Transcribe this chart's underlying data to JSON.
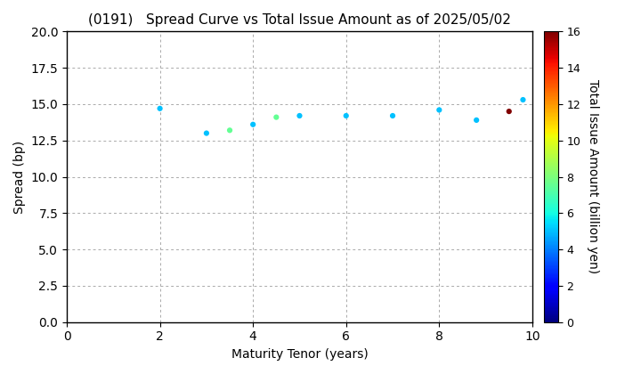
{
  "title": "(0191)   Spread Curve vs Total Issue Amount as of 2025/05/02",
  "xlabel": "Maturity Tenor (years)",
  "ylabel": "Spread (bp)",
  "colorbar_label": "Total Issue Amount (billion yen)",
  "xlim": [
    0,
    10
  ],
  "ylim": [
    0.0,
    20.0
  ],
  "yticks": [
    0.0,
    2.5,
    5.0,
    7.5,
    10.0,
    12.5,
    15.0,
    17.5,
    20.0
  ],
  "xticks": [
    0,
    2,
    4,
    6,
    8,
    10
  ],
  "colorbar_min": 0,
  "colorbar_max": 16,
  "colorbar_ticks": [
    0,
    2,
    4,
    6,
    8,
    10,
    12,
    14,
    16
  ],
  "scatter_x": [
    2.0,
    3.0,
    3.5,
    4.0,
    4.5,
    5.0,
    6.0,
    7.0,
    8.0,
    8.8,
    9.5,
    9.8
  ],
  "scatter_y": [
    14.7,
    13.0,
    13.2,
    13.6,
    14.1,
    14.2,
    14.2,
    14.2,
    14.6,
    13.9,
    14.5,
    15.3
  ],
  "scatter_c": [
    5.0,
    5.0,
    7.5,
    5.0,
    7.5,
    5.0,
    5.0,
    5.0,
    5.0,
    5.0,
    16.0,
    5.0
  ],
  "marker_size": 20,
  "background_color": "#ffffff",
  "grid_color": "#aaaaaa",
  "title_fontsize": 11,
  "axis_fontsize": 10,
  "colormap": "jet"
}
